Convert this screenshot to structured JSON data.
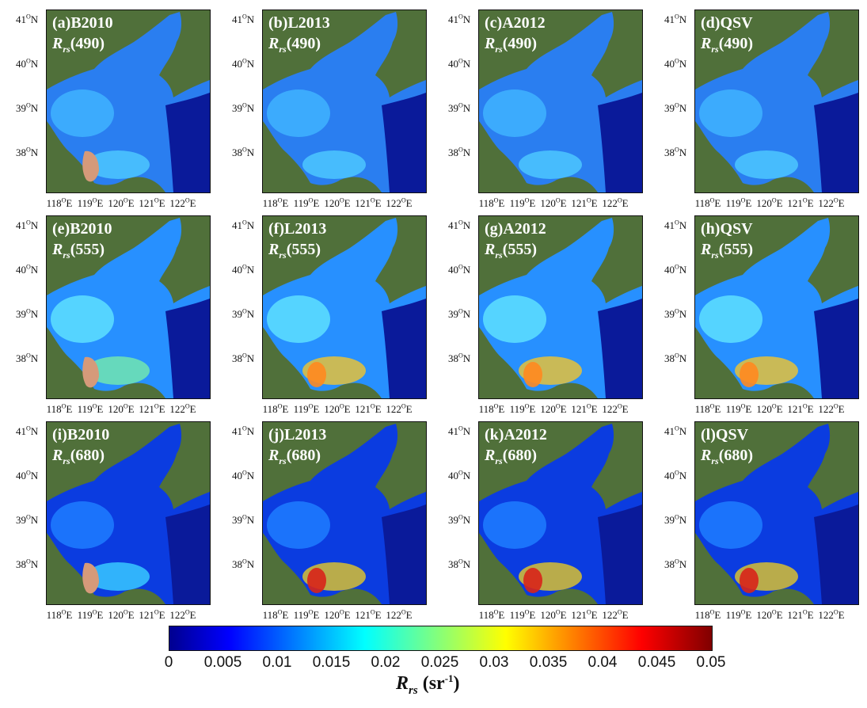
{
  "panels": [
    {
      "letter": "(a)",
      "algorithm": "B2010",
      "band": "(490)"
    },
    {
      "letter": "(b)",
      "algorithm": "L2013",
      "band": "(490)"
    },
    {
      "letter": "(c)",
      "algorithm": "A2012",
      "band": "(490)"
    },
    {
      "letter": "(d)",
      "algorithm": "QSV",
      "band": "(490)"
    },
    {
      "letter": "(e)",
      "algorithm": "B2010",
      "band": "(555)"
    },
    {
      "letter": "(f)",
      "algorithm": "L2013",
      "band": "(555)"
    },
    {
      "letter": "(g)",
      "algorithm": "A2012",
      "band": "(555)"
    },
    {
      "letter": "(h)",
      "algorithm": "QSV",
      "band": "(555)"
    },
    {
      "letter": "(i)",
      "algorithm": "B2010",
      "band": "(680)"
    },
    {
      "letter": "(j)",
      "algorithm": "L2013",
      "band": "(680)"
    },
    {
      "letter": "(k)",
      "algorithm": "A2012",
      "band": "(680)"
    },
    {
      "letter": "(l)",
      "algorithm": "QSV",
      "band": "(680)"
    }
  ],
  "rs_symbol": "R",
  "rs_subscript": "rs",
  "lat_ticks": [
    {
      "deg": "41",
      "hemi": "N"
    },
    {
      "deg": "40",
      "hemi": "N"
    },
    {
      "deg": "39",
      "hemi": "N"
    },
    {
      "deg": "38",
      "hemi": "N"
    }
  ],
  "lon_ticks": [
    {
      "deg": "118",
      "hemi": "E"
    },
    {
      "deg": "119",
      "hemi": "E"
    },
    {
      "deg": "120",
      "hemi": "E"
    },
    {
      "deg": "121",
      "hemi": "E"
    },
    {
      "deg": "122",
      "hemi": "E"
    }
  ],
  "degree_symbol": "O",
  "colorbar": {
    "ticks": [
      "0",
      "0.005",
      "0.01",
      "0.015",
      "0.02",
      "0.025",
      "0.03",
      "0.035",
      "0.04",
      "0.045",
      "0.05"
    ],
    "range": [
      0,
      0.05
    ],
    "colormap": "jet",
    "label_symbol": "R",
    "label_subscript": "rs",
    "label_unit": "(sr",
    "label_unit_exp": "-1",
    "label_unit_close": ")"
  },
  "colors": {
    "land": "#4a6b35",
    "deep_water": "#0a1a9a",
    "river_sediment": "#d59a7a"
  }
}
